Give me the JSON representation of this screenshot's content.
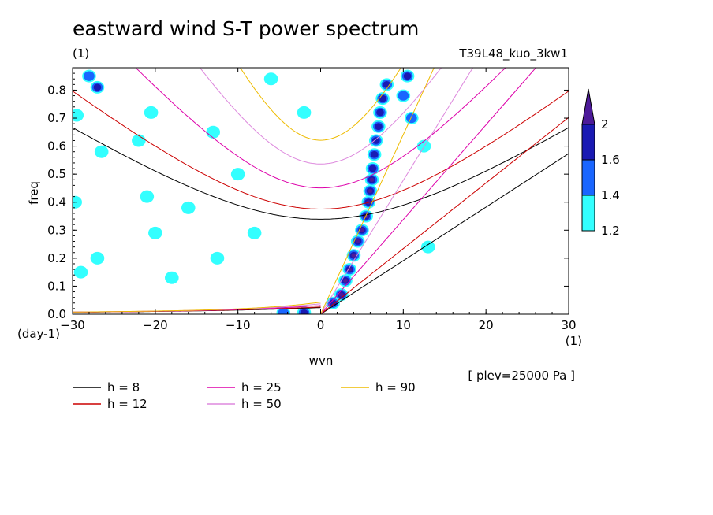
{
  "chart_data": {
    "type": "heatmap",
    "title": "eastward wind S-T power spectrum",
    "subtitle_left": "(1)",
    "subtitle_right": "T39L48_kuo_3kw1",
    "xlabel": "wvn",
    "ylabel": "freq",
    "x_unit": "(1)",
    "y_unit": "(day-1)",
    "annotation": "[ plev=25000 Pa ]",
    "xlim": [
      -30,
      30
    ],
    "ylim": [
      0,
      0.88
    ],
    "x_ticks": [
      "-30",
      "-20",
      "-10",
      "0",
      "10",
      "20",
      "30"
    ],
    "y_ticks": [
      "0.0",
      "0.1",
      "0.2",
      "0.3",
      "0.4",
      "0.5",
      "0.6",
      "0.7",
      "0.8"
    ],
    "colorbar": {
      "levels": [
        "1.2",
        "1.4",
        "1.6",
        "2"
      ],
      "colors": [
        "#33ffff",
        "#1a66ff",
        "#1a1ab3",
        "#4d1a99"
      ]
    },
    "dispersion_curves": [
      {
        "label": "h =  8",
        "h": 8,
        "color": "#000000"
      },
      {
        "label": "h = 12",
        "h": 12,
        "color": "#cc0000"
      },
      {
        "label": "h = 25",
        "h": 25,
        "color": "#dd00aa"
      },
      {
        "label": "h = 50",
        "h": 50,
        "color": "#dd88dd"
      },
      {
        "label": "h = 90",
        "h": 90,
        "color": "#eebb00"
      }
    ],
    "power_blobs": [
      {
        "x": 1.5,
        "y": 0.04,
        "level": 3
      },
      {
        "x": 2.5,
        "y": 0.07,
        "level": 4
      },
      {
        "x": 3.0,
        "y": 0.12,
        "level": 4
      },
      {
        "x": 3.5,
        "y": 0.16,
        "level": 4
      },
      {
        "x": 4.0,
        "y": 0.21,
        "level": 4
      },
      {
        "x": 4.5,
        "y": 0.26,
        "level": 4
      },
      {
        "x": 5.0,
        "y": 0.3,
        "level": 4
      },
      {
        "x": 5.5,
        "y": 0.35,
        "level": 4
      },
      {
        "x": 5.8,
        "y": 0.4,
        "level": 4
      },
      {
        "x": 6.0,
        "y": 0.44,
        "level": 4
      },
      {
        "x": 6.2,
        "y": 0.48,
        "level": 4
      },
      {
        "x": 6.3,
        "y": 0.52,
        "level": 3
      },
      {
        "x": 6.5,
        "y": 0.57,
        "level": 3
      },
      {
        "x": 6.7,
        "y": 0.62,
        "level": 3
      },
      {
        "x": 7.0,
        "y": 0.67,
        "level": 3
      },
      {
        "x": 7.2,
        "y": 0.72,
        "level": 3
      },
      {
        "x": 7.5,
        "y": 0.77,
        "level": 3
      },
      {
        "x": 8.0,
        "y": 0.82,
        "level": 3
      },
      {
        "x": 10.5,
        "y": 0.85,
        "level": 3
      },
      {
        "x": 10.0,
        "y": 0.78,
        "level": 2
      },
      {
        "x": 11.0,
        "y": 0.7,
        "level": 2
      },
      {
        "x": -2.0,
        "y": 0.005,
        "level": 3
      },
      {
        "x": -4.5,
        "y": 0.005,
        "level": 2
      },
      {
        "x": -28.0,
        "y": 0.85,
        "level": 2
      },
      {
        "x": -27.0,
        "y": 0.81,
        "level": 3
      },
      {
        "x": -29.5,
        "y": 0.71,
        "level": 1
      },
      {
        "x": -20.5,
        "y": 0.72,
        "level": 1
      },
      {
        "x": -22.0,
        "y": 0.62,
        "level": 1
      },
      {
        "x": -21.0,
        "y": 0.42,
        "level": 1
      },
      {
        "x": -26.5,
        "y": 0.58,
        "level": 1
      },
      {
        "x": -29.7,
        "y": 0.4,
        "level": 1
      },
      {
        "x": -20.0,
        "y": 0.29,
        "level": 1
      },
      {
        "x": -12.5,
        "y": 0.2,
        "level": 1
      },
      {
        "x": -18.0,
        "y": 0.13,
        "level": 1
      },
      {
        "x": -27.0,
        "y": 0.2,
        "level": 1
      },
      {
        "x": -16.0,
        "y": 0.38,
        "level": 1
      },
      {
        "x": -10.0,
        "y": 0.5,
        "level": 1
      },
      {
        "x": -6.0,
        "y": 0.84,
        "level": 1
      },
      {
        "x": -13.0,
        "y": 0.65,
        "level": 1
      },
      {
        "x": -2.0,
        "y": 0.72,
        "level": 1
      },
      {
        "x": -8.0,
        "y": 0.29,
        "level": 1
      },
      {
        "x": -29.0,
        "y": 0.15,
        "level": 1
      },
      {
        "x": 13.0,
        "y": 0.24,
        "level": 1
      },
      {
        "x": 12.5,
        "y": 0.6,
        "level": 1
      }
    ]
  }
}
